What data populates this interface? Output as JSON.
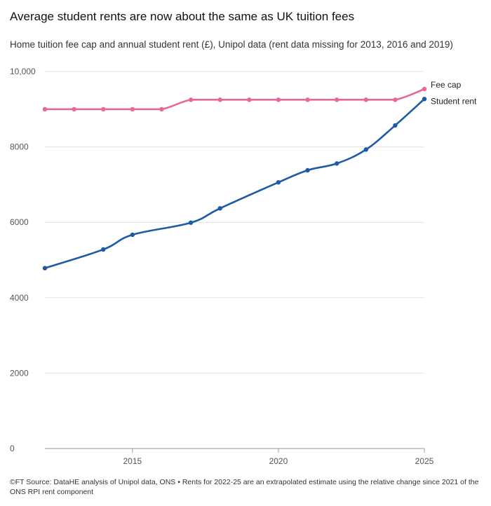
{
  "title": "Average student rents are now about the same as UK tuition fees",
  "subtitle": "Home tuition fee cap and annual student rent (£), Unipol data (rent data missing for 2013, 2016 and 2019)",
  "footer": "©FT Source: DataHE analysis of Unipol data, ONS • Rents for 2022-25 are an extrapolated estimate using the relative change since 2021 of the ONS RPI rent component",
  "chart_data": {
    "type": "line",
    "title": "Average student rents are now about the same as UK tuition fees",
    "subtitle": "Home tuition fee cap and annual student rent (£), Unipol data (rent data missing for 2013, 2016 and 2019)",
    "xlabel": "",
    "ylabel": "",
    "xlim": [
      2012,
      2025
    ],
    "ylim": [
      0,
      10000
    ],
    "x_ticks": [
      2015,
      2020,
      2025
    ],
    "y_ticks": [
      {
        "value": 0,
        "label": "0"
      },
      {
        "value": 2000,
        "label": "2000"
      },
      {
        "value": 4000,
        "label": "4000"
      },
      {
        "value": 6000,
        "label": "6000"
      },
      {
        "value": 8000,
        "label": "8000"
      },
      {
        "value": 10000,
        "label": "10,000"
      }
    ],
    "grid": true,
    "legend": "direct labels at line ends (right)",
    "series": [
      {
        "name": "Fee cap",
        "color": "#e8679a",
        "points": [
          {
            "x": 2012,
            "y": 9000
          },
          {
            "x": 2013,
            "y": 9000
          },
          {
            "x": 2014,
            "y": 9000
          },
          {
            "x": 2015,
            "y": 9000
          },
          {
            "x": 2016,
            "y": 9000
          },
          {
            "x": 2017,
            "y": 9250
          },
          {
            "x": 2018,
            "y": 9250
          },
          {
            "x": 2019,
            "y": 9250
          },
          {
            "x": 2020,
            "y": 9250
          },
          {
            "x": 2021,
            "y": 9250
          },
          {
            "x": 2022,
            "y": 9250
          },
          {
            "x": 2023,
            "y": 9250
          },
          {
            "x": 2024,
            "y": 9250
          },
          {
            "x": 2025,
            "y": 9535
          }
        ]
      },
      {
        "name": "Student rent",
        "color": "#1f5aa6",
        "points": [
          {
            "x": 2012,
            "y": 4785
          },
          {
            "x": 2014,
            "y": 5280
          },
          {
            "x": 2015,
            "y": 5670
          },
          {
            "x": 2017,
            "y": 5990
          },
          {
            "x": 2018,
            "y": 6370
          },
          {
            "x": 2020,
            "y": 7060
          },
          {
            "x": 2021,
            "y": 7380
          },
          {
            "x": 2022,
            "y": 7560
          },
          {
            "x": 2023,
            "y": 7930
          },
          {
            "x": 2024,
            "y": 8570
          },
          {
            "x": 2025,
            "y": 9270
          }
        ]
      }
    ]
  }
}
